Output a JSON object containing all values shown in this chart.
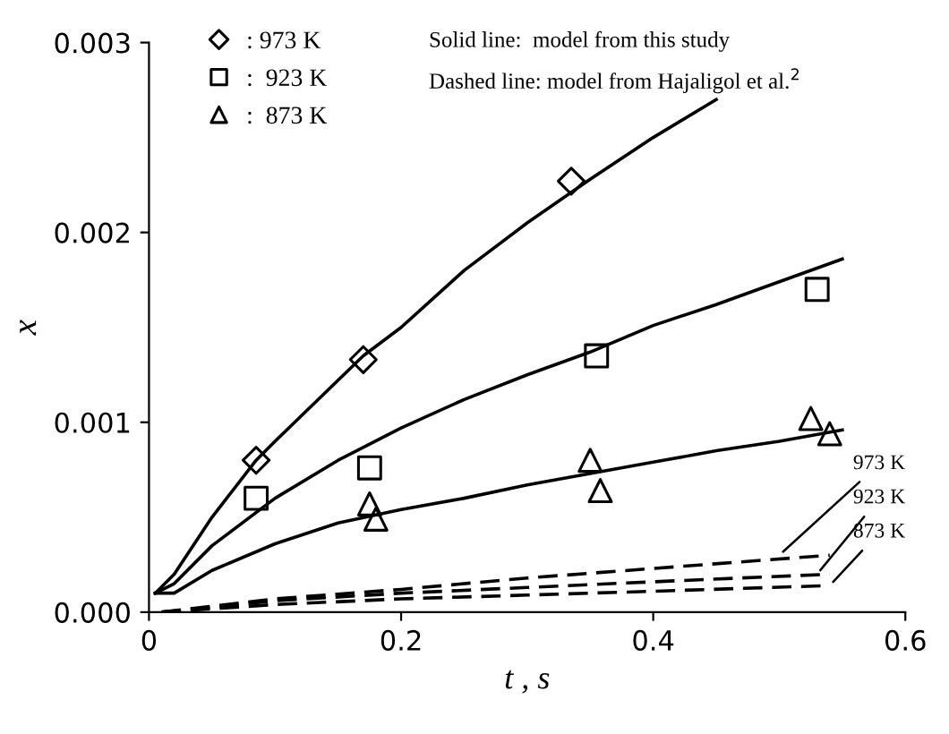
{
  "chart_data": {
    "type": "scatter",
    "xlabel": "t , s",
    "ylabel": "x",
    "xlim": [
      0,
      0.6
    ],
    "xticks": [
      0,
      0.2,
      0.4,
      0.6
    ],
    "ylim": [
      0,
      0.003
    ],
    "yticks": [
      {
        "value": 0,
        "label": "0.000"
      },
      0.001,
      0.002,
      0.003
    ],
    "grid": false,
    "legend": "top left",
    "series": [
      {
        "name": ": 973 K",
        "type": "scatter",
        "marker": "diamond",
        "color": "#000000",
        "x": [
          0.085,
          0.17,
          0.335
        ],
        "values": [
          0.0008,
          0.00133,
          0.00227
        ]
      },
      {
        "name": ":  923 K",
        "type": "scatter",
        "marker": "square",
        "color": "#000000",
        "x": [
          0.085,
          0.175,
          0.355,
          0.53
        ],
        "values": [
          0.0006,
          0.00076,
          0.00135,
          0.0017
        ]
      },
      {
        "name": ":  873 K",
        "type": "scatter",
        "marker": "triangle",
        "color": "#000000",
        "x": [
          0.175,
          0.18,
          0.35,
          0.358,
          0.525,
          0.54
        ],
        "values": [
          0.00057,
          0.00049,
          0.0008,
          0.00064,
          0.00102,
          0.00094
        ]
      },
      {
        "type": "line",
        "line_style": "solid",
        "color": "#000000",
        "x": [
          0.005,
          0.02,
          0.05,
          0.085,
          0.1,
          0.17,
          0.2,
          0.25,
          0.3,
          0.35,
          0.4,
          0.45
        ],
        "values": [
          0.0001,
          0.0002,
          0.0005,
          0.0008,
          0.0009,
          0.00135,
          0.0015,
          0.0018,
          0.00205,
          0.00228,
          0.0025,
          0.0027
        ]
      },
      {
        "type": "line",
        "line_style": "solid",
        "color": "#000000",
        "x": [
          0.005,
          0.02,
          0.05,
          0.1,
          0.15,
          0.2,
          0.25,
          0.3,
          0.35,
          0.4,
          0.45,
          0.5,
          0.55
        ],
        "values": [
          0.0001,
          0.00015,
          0.00035,
          0.0006,
          0.0008,
          0.00097,
          0.00112,
          0.00125,
          0.00137,
          0.00151,
          0.00162,
          0.00174,
          0.00186
        ]
      },
      {
        "type": "line",
        "line_style": "solid",
        "color": "#000000",
        "x": [
          0.005,
          0.02,
          0.05,
          0.1,
          0.15,
          0.2,
          0.25,
          0.3,
          0.35,
          0.4,
          0.45,
          0.5,
          0.55
        ],
        "values": [
          0.0001,
          0.0001,
          0.00022,
          0.00036,
          0.00047,
          0.00054,
          0.0006,
          0.00067,
          0.00073,
          0.00079,
          0.00085,
          0.0009,
          0.00096
        ]
      },
      {
        "type": "line",
        "line_style": "dashed",
        "color": "#000000",
        "x": [
          0.01,
          0.1,
          0.2,
          0.3,
          0.4,
          0.54
        ],
        "values": [
          0,
          7e-05,
          0.00012,
          0.00018,
          0.00023,
          0.0003
        ]
      },
      {
        "type": "line",
        "line_style": "dashed",
        "color": "#000000",
        "x": [
          0.01,
          0.1,
          0.2,
          0.3,
          0.4,
          0.54
        ],
        "values": [
          0,
          6e-05,
          0.0001,
          0.00013,
          0.00016,
          0.0002
        ]
      },
      {
        "type": "line",
        "line_style": "dashed",
        "color": "#000000",
        "x": [
          0.01,
          0.1,
          0.2,
          0.3,
          0.4,
          0.54
        ],
        "values": [
          0,
          4e-05,
          7e-05,
          9e-05,
          0.00011,
          0.00014
        ]
      }
    ],
    "annotations": [
      "Solid line:  model from this study",
      "Dashed line: model from Hajaligol et al.$^{2}$",
      {
        "text": "973 K",
        "x": 0.5,
        "y": 0.0003
      },
      {
        "text": "923 K",
        "x": 0.53,
        "y": 0.0002
      },
      {
        "text": "873 K",
        "x": 0.54,
        "y": 0.00014
      }
    ]
  }
}
